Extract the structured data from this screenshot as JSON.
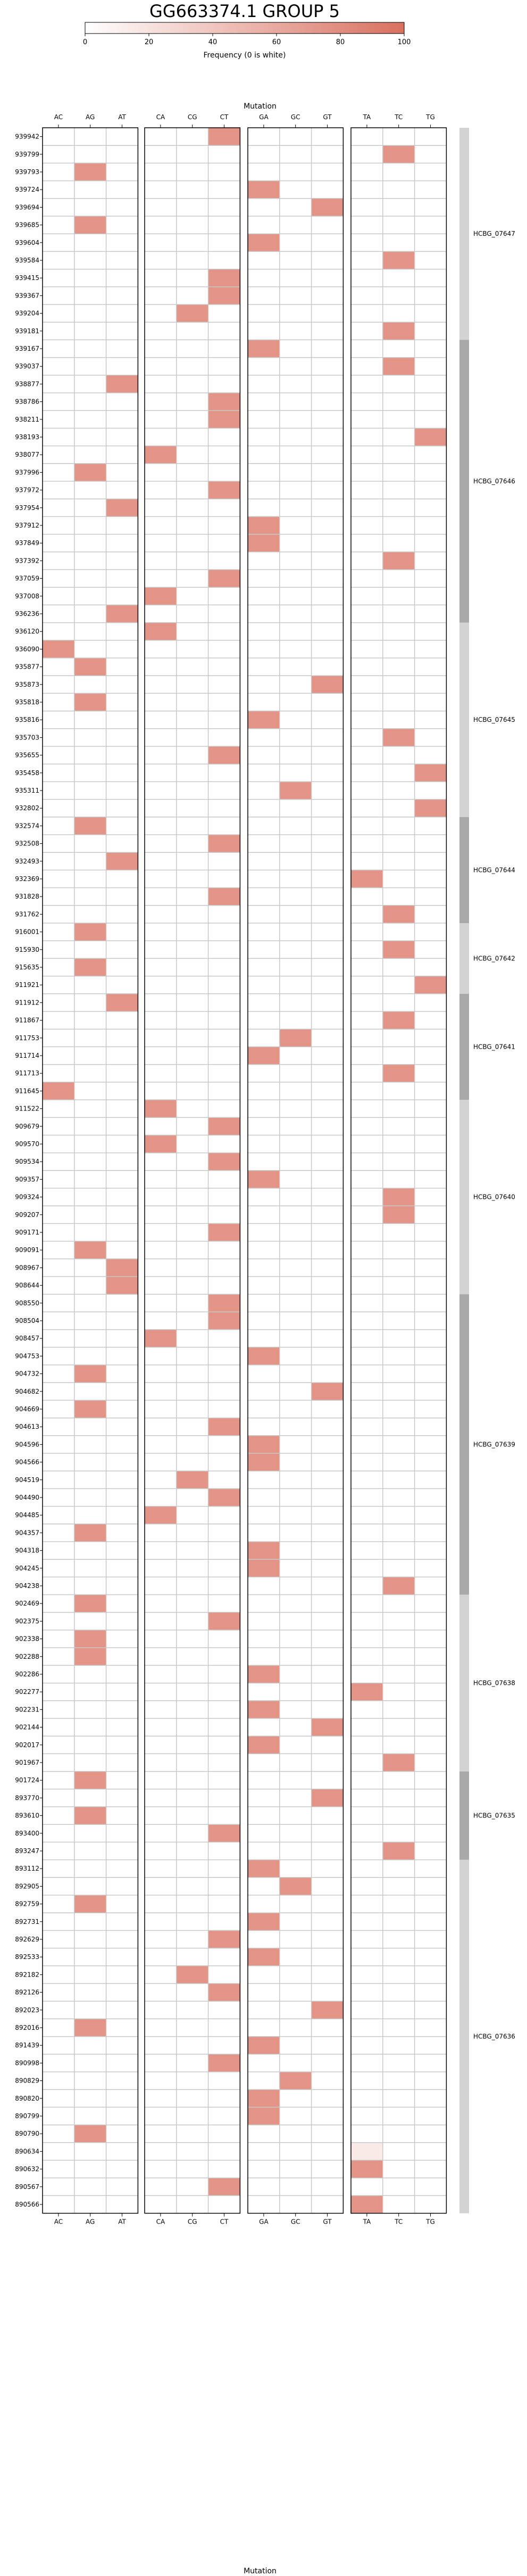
{
  "title": "GG663374.1 GROUP 5",
  "colorbar": {
    "label": "Frequency (0 is white)",
    "ticks": [
      0,
      20,
      40,
      60,
      80,
      100
    ],
    "min": 0,
    "max": 100,
    "color_low": "#ffffff",
    "color_high": "#d9705f"
  },
  "chart_data": {
    "type": "heatmap",
    "title": "GG663374.1 GROUP 5",
    "xlabel": "Mutation",
    "ylabel": "",
    "value_range": [
      0,
      100
    ],
    "groups": [
      [
        "AC",
        "AG",
        "AT"
      ],
      [
        "CA",
        "CG",
        "CT"
      ],
      [
        "GA",
        "GC",
        "GT"
      ],
      [
        "TA",
        "TC",
        "TG"
      ]
    ],
    "rows": [
      "939942",
      "939799",
      "939793",
      "939724",
      "939694",
      "939685",
      "939604",
      "939584",
      "939415",
      "939367",
      "939204",
      "939181",
      "939167",
      "939037",
      "938877",
      "938786",
      "938211",
      "938193",
      "938077",
      "937996",
      "937972",
      "937954",
      "937912",
      "937849",
      "937392",
      "937059",
      "937008",
      "936236",
      "936120",
      "936090",
      "935877",
      "935873",
      "935818",
      "935816",
      "935703",
      "935655",
      "935458",
      "935311",
      "932802",
      "932574",
      "932508",
      "932493",
      "932369",
      "931828",
      "931762",
      "916001",
      "915930",
      "915635",
      "911921",
      "911912",
      "911867",
      "911753",
      "911714",
      "911713",
      "911645",
      "911522",
      "909679",
      "909570",
      "909534",
      "909357",
      "909324",
      "909207",
      "909171",
      "909091",
      "908967",
      "908644",
      "908550",
      "908504",
      "908457",
      "904753",
      "904732",
      "904682",
      "904669",
      "904613",
      "904596",
      "904566",
      "904519",
      "904490",
      "904485",
      "904357",
      "904318",
      "904245",
      "904238",
      "902469",
      "902375",
      "902338",
      "902288",
      "902286",
      "902277",
      "902231",
      "902144",
      "902017",
      "901967",
      "901724",
      "893770",
      "893610",
      "893400",
      "893247",
      "893112",
      "892905",
      "892759",
      "892731",
      "892629",
      "892533",
      "892182",
      "892126",
      "892023",
      "892016",
      "891439",
      "890998",
      "890829",
      "890820",
      "890799",
      "890790",
      "890634",
      "890632",
      "890567",
      "890566"
    ],
    "cells": [
      {
        "row": "939942",
        "mutation": "CT",
        "value": 75
      },
      {
        "row": "939799",
        "mutation": "TC",
        "value": 75
      },
      {
        "row": "939793",
        "mutation": "AG",
        "value": 75
      },
      {
        "row": "939724",
        "mutation": "GA",
        "value": 75
      },
      {
        "row": "939694",
        "mutation": "GT",
        "value": 75
      },
      {
        "row": "939685",
        "mutation": "AG",
        "value": 75
      },
      {
        "row": "939604",
        "mutation": "GA",
        "value": 75
      },
      {
        "row": "939584",
        "mutation": "TC",
        "value": 75
      },
      {
        "row": "939415",
        "mutation": "CT",
        "value": 75
      },
      {
        "row": "939367",
        "mutation": "CT",
        "value": 75
      },
      {
        "row": "939204",
        "mutation": "CG",
        "value": 75
      },
      {
        "row": "939181",
        "mutation": "TC",
        "value": 75
      },
      {
        "row": "939167",
        "mutation": "GA",
        "value": 75
      },
      {
        "row": "939037",
        "mutation": "TC",
        "value": 75
      },
      {
        "row": "938877",
        "mutation": "AT",
        "value": 75
      },
      {
        "row": "938786",
        "mutation": "CT",
        "value": 75
      },
      {
        "row": "938211",
        "mutation": "CT",
        "value": 75
      },
      {
        "row": "938193",
        "mutation": "TG",
        "value": 75
      },
      {
        "row": "938077",
        "mutation": "CA",
        "value": 75
      },
      {
        "row": "937996",
        "mutation": "AG",
        "value": 75
      },
      {
        "row": "937972",
        "mutation": "CT",
        "value": 75
      },
      {
        "row": "937954",
        "mutation": "AT",
        "value": 75
      },
      {
        "row": "937912",
        "mutation": "GA",
        "value": 75
      },
      {
        "row": "937849",
        "mutation": "GA",
        "value": 75
      },
      {
        "row": "937392",
        "mutation": "TC",
        "value": 75
      },
      {
        "row": "937059",
        "mutation": "CT",
        "value": 75
      },
      {
        "row": "937008",
        "mutation": "CA",
        "value": 75
      },
      {
        "row": "936236",
        "mutation": "AT",
        "value": 75
      },
      {
        "row": "936120",
        "mutation": "CA",
        "value": 75
      },
      {
        "row": "936090",
        "mutation": "AC",
        "value": 75
      },
      {
        "row": "935877",
        "mutation": "AG",
        "value": 75
      },
      {
        "row": "935873",
        "mutation": "GT",
        "value": 75
      },
      {
        "row": "935818",
        "mutation": "AG",
        "value": 75
      },
      {
        "row": "935816",
        "mutation": "GA",
        "value": 75
      },
      {
        "row": "935703",
        "mutation": "TC",
        "value": 75
      },
      {
        "row": "935655",
        "mutation": "CT",
        "value": 75
      },
      {
        "row": "935458",
        "mutation": "TG",
        "value": 75
      },
      {
        "row": "935311",
        "mutation": "GC",
        "value": 75
      },
      {
        "row": "932802",
        "mutation": "TG",
        "value": 75
      },
      {
        "row": "932574",
        "mutation": "AG",
        "value": 75
      },
      {
        "row": "932508",
        "mutation": "CT",
        "value": 75
      },
      {
        "row": "932493",
        "mutation": "AT",
        "value": 75
      },
      {
        "row": "932369",
        "mutation": "TA",
        "value": 75
      },
      {
        "row": "931828",
        "mutation": "CT",
        "value": 75
      },
      {
        "row": "931762",
        "mutation": "TC",
        "value": 75
      },
      {
        "row": "916001",
        "mutation": "AG",
        "value": 75
      },
      {
        "row": "915930",
        "mutation": "TC",
        "value": 75
      },
      {
        "row": "915635",
        "mutation": "AG",
        "value": 75
      },
      {
        "row": "911921",
        "mutation": "TG",
        "value": 75
      },
      {
        "row": "911912",
        "mutation": "AT",
        "value": 75
      },
      {
        "row": "911867",
        "mutation": "TC",
        "value": 75
      },
      {
        "row": "911753",
        "mutation": "GC",
        "value": 75
      },
      {
        "row": "911714",
        "mutation": "GA",
        "value": 75
      },
      {
        "row": "911713",
        "mutation": "TC",
        "value": 75
      },
      {
        "row": "911645",
        "mutation": "AC",
        "value": 75
      },
      {
        "row": "911522",
        "mutation": "CA",
        "value": 75
      },
      {
        "row": "909679",
        "mutation": "CT",
        "value": 75
      },
      {
        "row": "909570",
        "mutation": "CA",
        "value": 75
      },
      {
        "row": "909534",
        "mutation": "CT",
        "value": 75
      },
      {
        "row": "909357",
        "mutation": "GA",
        "value": 75
      },
      {
        "row": "909324",
        "mutation": "TC",
        "value": 75
      },
      {
        "row": "909207",
        "mutation": "TC",
        "value": 75
      },
      {
        "row": "909171",
        "mutation": "CT",
        "value": 75
      },
      {
        "row": "909091",
        "mutation": "AG",
        "value": 75
      },
      {
        "row": "908967",
        "mutation": "AT",
        "value": 75
      },
      {
        "row": "908644",
        "mutation": "AT",
        "value": 75
      },
      {
        "row": "908550",
        "mutation": "CT",
        "value": 75
      },
      {
        "row": "908504",
        "mutation": "CT",
        "value": 75
      },
      {
        "row": "908457",
        "mutation": "CA",
        "value": 75
      },
      {
        "row": "904753",
        "mutation": "GA",
        "value": 75
      },
      {
        "row": "904732",
        "mutation": "AG",
        "value": 75
      },
      {
        "row": "904682",
        "mutation": "GT",
        "value": 75
      },
      {
        "row": "904669",
        "mutation": "AG",
        "value": 75
      },
      {
        "row": "904613",
        "mutation": "CT",
        "value": 75
      },
      {
        "row": "904596",
        "mutation": "GA",
        "value": 75
      },
      {
        "row": "904566",
        "mutation": "GA",
        "value": 75
      },
      {
        "row": "904519",
        "mutation": "CG",
        "value": 75
      },
      {
        "row": "904490",
        "mutation": "CT",
        "value": 75
      },
      {
        "row": "904485",
        "mutation": "CA",
        "value": 75
      },
      {
        "row": "904357",
        "mutation": "AG",
        "value": 75
      },
      {
        "row": "904318",
        "mutation": "GA",
        "value": 75
      },
      {
        "row": "904245",
        "mutation": "GA",
        "value": 75
      },
      {
        "row": "904238",
        "mutation": "TC",
        "value": 75
      },
      {
        "row": "902469",
        "mutation": "AG",
        "value": 75
      },
      {
        "row": "902375",
        "mutation": "CT",
        "value": 75
      },
      {
        "row": "902338",
        "mutation": "AG",
        "value": 75
      },
      {
        "row": "902288",
        "mutation": "AG",
        "value": 75
      },
      {
        "row": "902286",
        "mutation": "GA",
        "value": 75
      },
      {
        "row": "902277",
        "mutation": "TA",
        "value": 75
      },
      {
        "row": "902231",
        "mutation": "GA",
        "value": 75
      },
      {
        "row": "902144",
        "mutation": "GT",
        "value": 75
      },
      {
        "row": "902017",
        "mutation": "GA",
        "value": 75
      },
      {
        "row": "901967",
        "mutation": "TC",
        "value": 75
      },
      {
        "row": "901724",
        "mutation": "AG",
        "value": 75
      },
      {
        "row": "893770",
        "mutation": "GT",
        "value": 75
      },
      {
        "row": "893610",
        "mutation": "AG",
        "value": 75
      },
      {
        "row": "893400",
        "mutation": "CT",
        "value": 75
      },
      {
        "row": "893247",
        "mutation": "TC",
        "value": 75
      },
      {
        "row": "893112",
        "mutation": "GA",
        "value": 75
      },
      {
        "row": "892905",
        "mutation": "GC",
        "value": 75
      },
      {
        "row": "892759",
        "mutation": "AG",
        "value": 75
      },
      {
        "row": "892731",
        "mutation": "GA",
        "value": 75
      },
      {
        "row": "892629",
        "mutation": "CT",
        "value": 75
      },
      {
        "row": "892533",
        "mutation": "GA",
        "value": 75
      },
      {
        "row": "892182",
        "mutation": "CG",
        "value": 75
      },
      {
        "row": "892126",
        "mutation": "CT",
        "value": 75
      },
      {
        "row": "892023",
        "mutation": "GT",
        "value": 75
      },
      {
        "row": "892016",
        "mutation": "AG",
        "value": 75
      },
      {
        "row": "891439",
        "mutation": "GA",
        "value": 75
      },
      {
        "row": "890998",
        "mutation": "CT",
        "value": 75
      },
      {
        "row": "890829",
        "mutation": "GC",
        "value": 75
      },
      {
        "row": "890820",
        "mutation": "GA",
        "value": 75
      },
      {
        "row": "890799",
        "mutation": "GA",
        "value": 75
      },
      {
        "row": "890790",
        "mutation": "AG",
        "value": 75
      },
      {
        "row": "890634",
        "mutation": "TA",
        "value": 15
      },
      {
        "row": "890632",
        "mutation": "TA",
        "value": 75
      },
      {
        "row": "890567",
        "mutation": "CT",
        "value": 75
      },
      {
        "row": "890566",
        "mutation": "TA",
        "value": 75
      }
    ],
    "side_bands": [
      {
        "label": "HCBG_07647",
        "start": "939942",
        "end": "939181",
        "shade": "#d3d3d3"
      },
      {
        "label": "HCBG_07646",
        "start": "939167",
        "end": "936236",
        "shade": "#a9a9a9"
      },
      {
        "label": "HCBG_07645",
        "start": "936120",
        "end": "932802",
        "shade": "#d3d3d3"
      },
      {
        "label": "HCBG_07644",
        "start": "932574",
        "end": "931762",
        "shade": "#a9a9a9"
      },
      {
        "label": "HCBG_07642",
        "start": "916001",
        "end": "911921",
        "shade": "#d3d3d3"
      },
      {
        "label": "HCBG_07641",
        "start": "911912",
        "end": "911645",
        "shade": "#a9a9a9"
      },
      {
        "label": "HCBG_07640",
        "start": "911522",
        "end": "908644",
        "shade": "#d3d3d3"
      },
      {
        "label": "HCBG_07639",
        "start": "908550",
        "end": "904238",
        "shade": "#a9a9a9"
      },
      {
        "label": "HCBG_07638",
        "start": "902469",
        "end": "901967",
        "shade": "#d3d3d3"
      },
      {
        "label": "HCBG_07635",
        "start": "901724",
        "end": "893247",
        "shade": "#a9a9a9"
      },
      {
        "label": "HCBG_07636",
        "start": "893112",
        "end": "890566",
        "shade": "#d3d3d3"
      }
    ]
  }
}
